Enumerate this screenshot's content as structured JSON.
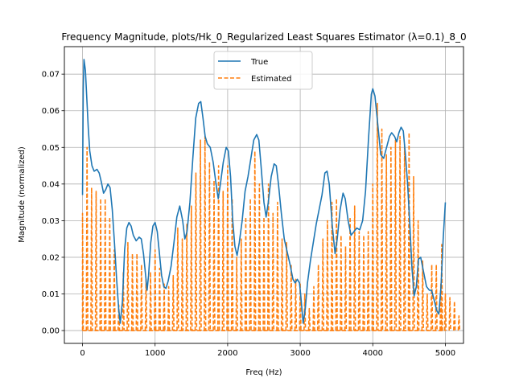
{
  "chart_data": {
    "type": "line",
    "title": "Frequency Magnitude, plots/Hk_0_Regularized Least Squares Estimator (λ=0.1)_8_0",
    "xlabel": "Freq (Hz)",
    "ylabel": "Magnitude (normalized)",
    "xlim": [
      -250,
      5250
    ],
    "ylim": [
      -0.0035,
      0.0775
    ],
    "xticks": [
      0,
      1000,
      2000,
      3000,
      4000,
      5000
    ],
    "xtick_labels": [
      "0",
      "1000",
      "2000",
      "3000",
      "4000",
      "5000"
    ],
    "yticks": [
      0.0,
      0.01,
      0.02,
      0.03,
      0.04,
      0.05,
      0.06,
      0.07
    ],
    "ytick_labels": [
      "0.00",
      "0.01",
      "0.02",
      "0.03",
      "0.04",
      "0.05",
      "0.06",
      "0.07"
    ],
    "grid": true,
    "legend_position": "top-center",
    "series": [
      {
        "name": "True",
        "color": "#1f77b4",
        "style": "solid",
        "points": [
          [
            0,
            0.037
          ],
          [
            10,
            0.066
          ],
          [
            20,
            0.074
          ],
          [
            40,
            0.071
          ],
          [
            60,
            0.063
          ],
          [
            80,
            0.055
          ],
          [
            100,
            0.049
          ],
          [
            130,
            0.045
          ],
          [
            160,
            0.0435
          ],
          [
            200,
            0.044
          ],
          [
            230,
            0.043
          ],
          [
            260,
            0.0405
          ],
          [
            290,
            0.0375
          ],
          [
            320,
            0.0385
          ],
          [
            350,
            0.04
          ],
          [
            380,
            0.039
          ],
          [
            410,
            0.033
          ],
          [
            440,
            0.024
          ],
          [
            470,
            0.014
          ],
          [
            500,
            0.0055
          ],
          [
            520,
            0.002
          ],
          [
            550,
            0.008
          ],
          [
            580,
            0.022
          ],
          [
            610,
            0.028
          ],
          [
            640,
            0.0295
          ],
          [
            670,
            0.0285
          ],
          [
            700,
            0.026
          ],
          [
            740,
            0.0245
          ],
          [
            780,
            0.0255
          ],
          [
            810,
            0.025
          ],
          [
            840,
            0.021
          ],
          [
            870,
            0.015
          ],
          [
            890,
            0.011
          ],
          [
            910,
            0.015
          ],
          [
            940,
            0.024
          ],
          [
            970,
            0.0285
          ],
          [
            1000,
            0.0295
          ],
          [
            1030,
            0.027
          ],
          [
            1060,
            0.021
          ],
          [
            1090,
            0.015
          ],
          [
            1120,
            0.012
          ],
          [
            1150,
            0.0115
          ],
          [
            1180,
            0.0135
          ],
          [
            1220,
            0.0175
          ],
          [
            1260,
            0.024
          ],
          [
            1300,
            0.031
          ],
          [
            1340,
            0.034
          ],
          [
            1380,
            0.03
          ],
          [
            1410,
            0.025
          ],
          [
            1440,
            0.027
          ],
          [
            1480,
            0.035
          ],
          [
            1520,
            0.047
          ],
          [
            1560,
            0.058
          ],
          [
            1600,
            0.062
          ],
          [
            1630,
            0.0625
          ],
          [
            1660,
            0.058
          ],
          [
            1690,
            0.053
          ],
          [
            1720,
            0.051
          ],
          [
            1760,
            0.05
          ],
          [
            1800,
            0.046
          ],
          [
            1840,
            0.04
          ],
          [
            1870,
            0.036
          ],
          [
            1900,
            0.04
          ],
          [
            1940,
            0.046
          ],
          [
            1980,
            0.05
          ],
          [
            2010,
            0.049
          ],
          [
            2040,
            0.042
          ],
          [
            2070,
            0.03
          ],
          [
            2100,
            0.023
          ],
          [
            2130,
            0.0205
          ],
          [
            2160,
            0.024
          ],
          [
            2200,
            0.03
          ],
          [
            2240,
            0.038
          ],
          [
            2280,
            0.042
          ],
          [
            2320,
            0.047
          ],
          [
            2360,
            0.052
          ],
          [
            2400,
            0.0535
          ],
          [
            2430,
            0.052
          ],
          [
            2460,
            0.045
          ],
          [
            2500,
            0.035
          ],
          [
            2530,
            0.031
          ],
          [
            2560,
            0.035
          ],
          [
            2600,
            0.042
          ],
          [
            2640,
            0.0455
          ],
          [
            2670,
            0.045
          ],
          [
            2700,
            0.04
          ],
          [
            2740,
            0.032
          ],
          [
            2780,
            0.025
          ],
          [
            2820,
            0.0215
          ],
          [
            2860,
            0.018
          ],
          [
            2900,
            0.014
          ],
          [
            2930,
            0.013
          ],
          [
            2960,
            0.014
          ],
          [
            2990,
            0.013
          ],
          [
            3010,
            0.009
          ],
          [
            3040,
            0.002
          ],
          [
            3070,
            0.006
          ],
          [
            3100,
            0.013
          ],
          [
            3140,
            0.019
          ],
          [
            3180,
            0.024
          ],
          [
            3220,
            0.029
          ],
          [
            3260,
            0.033
          ],
          [
            3300,
            0.037
          ],
          [
            3340,
            0.043
          ],
          [
            3370,
            0.0435
          ],
          [
            3400,
            0.04
          ],
          [
            3440,
            0.029
          ],
          [
            3480,
            0.021
          ],
          [
            3510,
            0.025
          ],
          [
            3550,
            0.033
          ],
          [
            3590,
            0.0375
          ],
          [
            3620,
            0.036
          ],
          [
            3660,
            0.03
          ],
          [
            3700,
            0.026
          ],
          [
            3740,
            0.027
          ],
          [
            3780,
            0.028
          ],
          [
            3820,
            0.0275
          ],
          [
            3860,
            0.03
          ],
          [
            3900,
            0.038
          ],
          [
            3940,
            0.052
          ],
          [
            3980,
            0.0645
          ],
          [
            4000,
            0.066
          ],
          [
            4030,
            0.064
          ],
          [
            4070,
            0.056
          ],
          [
            4110,
            0.048
          ],
          [
            4150,
            0.047
          ],
          [
            4190,
            0.05
          ],
          [
            4230,
            0.053
          ],
          [
            4260,
            0.054
          ],
          [
            4300,
            0.053
          ],
          [
            4330,
            0.0515
          ],
          [
            4360,
            0.054
          ],
          [
            4390,
            0.0555
          ],
          [
            4420,
            0.0545
          ],
          [
            4450,
            0.048
          ],
          [
            4480,
            0.04
          ],
          [
            4510,
            0.029
          ],
          [
            4540,
            0.017
          ],
          [
            4570,
            0.0095
          ],
          [
            4600,
            0.012
          ],
          [
            4630,
            0.0195
          ],
          [
            4660,
            0.02
          ],
          [
            4700,
            0.016
          ],
          [
            4740,
            0.012
          ],
          [
            4780,
            0.011
          ],
          [
            4810,
            0.011
          ],
          [
            4850,
            0.008
          ],
          [
            4880,
            0.0055
          ],
          [
            4910,
            0.0045
          ],
          [
            4940,
            0.012
          ],
          [
            4970,
            0.025
          ],
          [
            5000,
            0.035
          ]
        ]
      },
      {
        "name": "Estimated",
        "color": "#ff7f0e",
        "style": "dashed",
        "spike_spacing": 62.5,
        "peaks": [
          0.032,
          0.05,
          0.039,
          0.038,
          0.036,
          0.036,
          0.031,
          0.022,
          0.007,
          0.016,
          0.024,
          0.021,
          0.021,
          0.018,
          0.014,
          0.016,
          0.022,
          0.017,
          0.013,
          0.012,
          0.015,
          0.028,
          0.025,
          0.029,
          0.034,
          0.043,
          0.052,
          0.053,
          0.046,
          0.041,
          0.045,
          0.038,
          0.045,
          0.036,
          0.02,
          0.025,
          0.031,
          0.036,
          0.049,
          0.04,
          0.031,
          0.04,
          0.032,
          0.035,
          0.025,
          0.024,
          0.018,
          0.014,
          0.013,
          0.01,
          0.006,
          0.012,
          0.018,
          0.025,
          0.03,
          0.035,
          0.036,
          0.026,
          0.023,
          0.031,
          0.034,
          0.027,
          0.026,
          0.027,
          0.04,
          0.062,
          0.055,
          0.048,
          0.05,
          0.052,
          0.053,
          0.051,
          0.054,
          0.042,
          0.03,
          0.019,
          0.01,
          0.018,
          0.018,
          0.013,
          0.01,
          0.009,
          0.008,
          0.004
        ],
        "trailing_peak": [
          4950,
          0.0235
        ]
      }
    ]
  }
}
